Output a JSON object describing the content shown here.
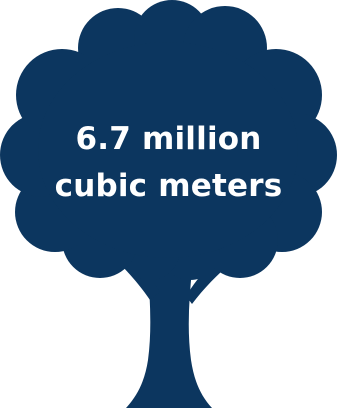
{
  "tree": {
    "label_line1": "6.7 million",
    "label_line2": "cubic meters",
    "icon": "tree-icon",
    "fill_color": "#0c365f",
    "text_color": "#ffffff",
    "background_color": "#ffffff"
  }
}
